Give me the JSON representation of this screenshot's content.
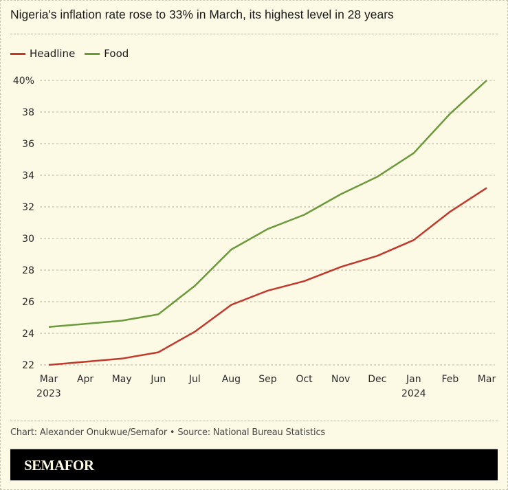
{
  "chart_data": {
    "type": "line",
    "title": "Nigeria's inflation rate rose to 33% in March, its highest level in 28 years",
    "xlabel": "",
    "ylabel": "",
    "categories": [
      "Mar",
      "Apr",
      "May",
      "Jun",
      "Jul",
      "Aug",
      "Sep",
      "Oct",
      "Nov",
      "Dec",
      "Jan",
      "Feb",
      "Mar"
    ],
    "category_sublabels": [
      "2023",
      "",
      "",
      "",
      "",
      "",
      "",
      "",
      "",
      "",
      "2024",
      "",
      ""
    ],
    "series": [
      {
        "name": "Headline",
        "color": "#c0392b",
        "values": [
          22.0,
          22.2,
          22.4,
          22.8,
          24.1,
          25.8,
          26.7,
          27.3,
          28.2,
          28.9,
          29.9,
          31.7,
          33.2
        ]
      },
      {
        "name": "Food",
        "color": "#6a9a3a",
        "values": [
          24.4,
          24.6,
          24.8,
          25.2,
          27.0,
          29.3,
          30.6,
          31.5,
          32.8,
          33.9,
          35.4,
          37.9,
          40.0
        ]
      }
    ],
    "ylim": [
      22,
      40
    ],
    "yticks": [
      22,
      24,
      26,
      28,
      30,
      32,
      34,
      36,
      38,
      40
    ],
    "ytick_labels": [
      "22",
      "24",
      "26",
      "28",
      "30",
      "32",
      "34",
      "36",
      "38",
      "40%"
    ],
    "grid": true,
    "legend_position": "top-left"
  },
  "legend": [
    {
      "label": "Headline",
      "color": "#c0392b"
    },
    {
      "label": "Food",
      "color": "#6a9a3a"
    }
  ],
  "footer": {
    "credit": "Chart: Alexander Onukwue/Semafor • Source: National Bureau Statistics",
    "brand": "SEMAFOR"
  }
}
